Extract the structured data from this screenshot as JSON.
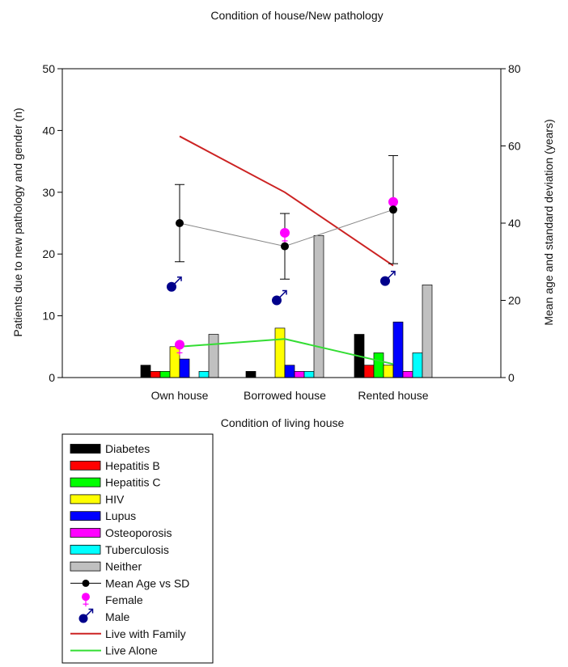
{
  "chart_data": {
    "type": "bar",
    "title": "Condition of house/New pathology",
    "xlabel": "Condition of living house",
    "ylabel": "Patients due to new pathology and gender (n)",
    "y2label": "Mean age and standard deviation (years)",
    "categories": [
      "Own house",
      "Borrowed house",
      "Rented house"
    ],
    "ylim": [
      0,
      50
    ],
    "yticks": [
      0,
      10,
      20,
      30,
      40,
      50
    ],
    "y2lim": [
      0,
      80
    ],
    "y2ticks": [
      0,
      20,
      40,
      60,
      80
    ],
    "grid": false,
    "legend_position": "bottom-left",
    "bar_series": [
      {
        "name": "Diabetes",
        "color": "#000000",
        "values": [
          2,
          1,
          7
        ]
      },
      {
        "name": "Hepatitis B",
        "color": "#ff0000",
        "values": [
          1,
          0,
          2
        ]
      },
      {
        "name": "Hepatitis C",
        "color": "#00ff00",
        "values": [
          1,
          0,
          4
        ]
      },
      {
        "name": "HIV",
        "color": "#ffff00",
        "values": [
          5,
          8,
          2
        ]
      },
      {
        "name": "Lupus",
        "color": "#0000ff",
        "values": [
          3,
          2,
          9
        ]
      },
      {
        "name": "Osteoporosis",
        "color": "#ff00ff",
        "values": [
          0,
          1,
          1
        ]
      },
      {
        "name": "Tuberculosis",
        "color": "#00ffff",
        "values": [
          1,
          1,
          4
        ]
      },
      {
        "name": "Neither",
        "color": "#c0c0c0",
        "values": [
          7,
          23,
          15
        ]
      }
    ],
    "mean_age": {
      "name": "Mean Age vs SD",
      "color": "#000000",
      "mean": [
        40,
        34,
        43.5
      ],
      "sd": [
        10,
        8.5,
        14
      ]
    },
    "female": {
      "name": "Female",
      "color": "#ff00ff",
      "values": [
        8.5,
        37.5,
        45.5
      ]
    },
    "male": {
      "name": "Male",
      "color": "#00008b",
      "values": [
        23.5,
        20,
        25
      ]
    },
    "line_series": [
      {
        "name": "Live with Family",
        "color": "#cc2222",
        "values": [
          62.5,
          48,
          29
        ]
      },
      {
        "name": "Live Alone",
        "color": "#33dd33",
        "values": [
          8,
          10,
          3.5
        ]
      }
    ]
  }
}
